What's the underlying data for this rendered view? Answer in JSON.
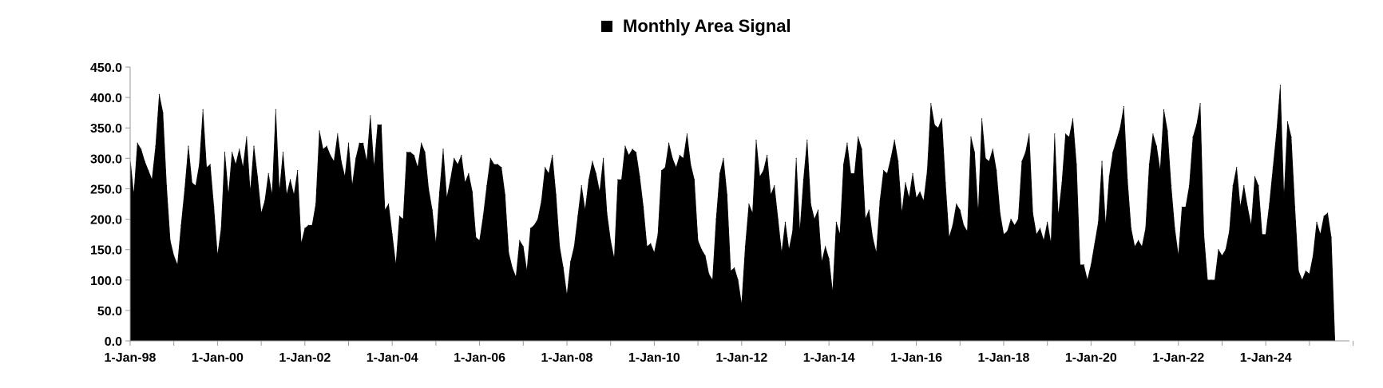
{
  "chart_data": {
    "type": "area",
    "title": "",
    "xlabel": "",
    "ylabel": "",
    "legend": {
      "position": "top-center",
      "entries": [
        {
          "name": "Monthly Area Signal",
          "color": "#000000"
        }
      ]
    },
    "ylim": [
      0,
      450
    ],
    "y_ticks": [
      "0.0",
      "50.0",
      "100.0",
      "150.0",
      "200.0",
      "250.0",
      "300.0",
      "350.0",
      "400.0",
      "450.0"
    ],
    "x_range": [
      "1998-01-01",
      "2025-12-01"
    ],
    "x_ticks": [
      "1-Jan-98",
      "1-Jan-00",
      "1-Jan-02",
      "1-Jan-04",
      "1-Jan-06",
      "1-Jan-08",
      "1-Jan-10",
      "1-Jan-12",
      "1-Jan-14",
      "1-Jan-16",
      "1-Jan-18",
      "1-Jan-20",
      "1-Jan-22",
      "1-Jan-24"
    ],
    "grid": false,
    "series": [
      {
        "name": "Monthly Area Signal",
        "color": "#000000",
        "x_start": "1998-01",
        "frequency": "monthly",
        "values": [
          300,
          240,
          325,
          315,
          295,
          280,
          265,
          320,
          405,
          375,
          255,
          165,
          140,
          125,
          190,
          250,
          320,
          260,
          255,
          290,
          380,
          285,
          290,
          220,
          140,
          185,
          310,
          240,
          310,
          290,
          315,
          285,
          335,
          245,
          320,
          270,
          210,
          230,
          275,
          240,
          380,
          245,
          310,
          240,
          265,
          240,
          280,
          160,
          185,
          190,
          190,
          225,
          345,
          315,
          320,
          305,
          295,
          340,
          295,
          270,
          325,
          255,
          300,
          325,
          325,
          295,
          370,
          285,
          355,
          355,
          215,
          225,
          175,
          125,
          205,
          200,
          310,
          310,
          305,
          285,
          325,
          310,
          250,
          215,
          160,
          245,
          315,
          235,
          265,
          300,
          290,
          305,
          260,
          275,
          245,
          170,
          165,
          205,
          255,
          300,
          290,
          290,
          285,
          240,
          145,
          120,
          105,
          165,
          155,
          115,
          185,
          190,
          200,
          230,
          285,
          275,
          305,
          240,
          155,
          120,
          75,
          130,
          155,
          205,
          255,
          215,
          265,
          295,
          275,
          245,
          300,
          210,
          165,
          135,
          265,
          265,
          320,
          305,
          315,
          310,
          270,
          220,
          155,
          160,
          145,
          175,
          280,
          285,
          325,
          300,
          285,
          305,
          300,
          340,
          290,
          265,
          165,
          150,
          140,
          110,
          100,
          200,
          275,
          300,
          240,
          115,
          120,
          100,
          60,
          155,
          225,
          210,
          330,
          270,
          280,
          305,
          240,
          255,
          200,
          145,
          195,
          150,
          180,
          300,
          180,
          265,
          330,
          225,
          200,
          215,
          130,
          155,
          135,
          80,
          195,
          175,
          290,
          325,
          275,
          275,
          335,
          315,
          200,
          215,
          170,
          145,
          230,
          280,
          275,
          300,
          330,
          295,
          210,
          260,
          235,
          275,
          235,
          245,
          230,
          280,
          390,
          355,
          350,
          365,
          260,
          170,
          190,
          225,
          215,
          190,
          180,
          335,
          310,
          210,
          365,
          300,
          295,
          315,
          280,
          210,
          175,
          180,
          200,
          190,
          200,
          295,
          310,
          340,
          210,
          175,
          185,
          165,
          195,
          160,
          340,
          205,
          260,
          340,
          335,
          365,
          290,
          125,
          125,
          100,
          125,
          160,
          195,
          295,
          190,
          270,
          310,
          330,
          350,
          385,
          265,
          185,
          155,
          165,
          155,
          185,
          290,
          340,
          320,
          280,
          380,
          345,
          255,
          185,
          140,
          220,
          220,
          255,
          335,
          355,
          390,
          175,
          100,
          100,
          100,
          150,
          140,
          150,
          180,
          255,
          285,
          220,
          255,
          220,
          190,
          270,
          255,
          175,
          175,
          225,
          285,
          345,
          420,
          235,
          360,
          335,
          220,
          115,
          100,
          115,
          110,
          140,
          195,
          175,
          205,
          210,
          170,
          0
        ]
      }
    ]
  }
}
